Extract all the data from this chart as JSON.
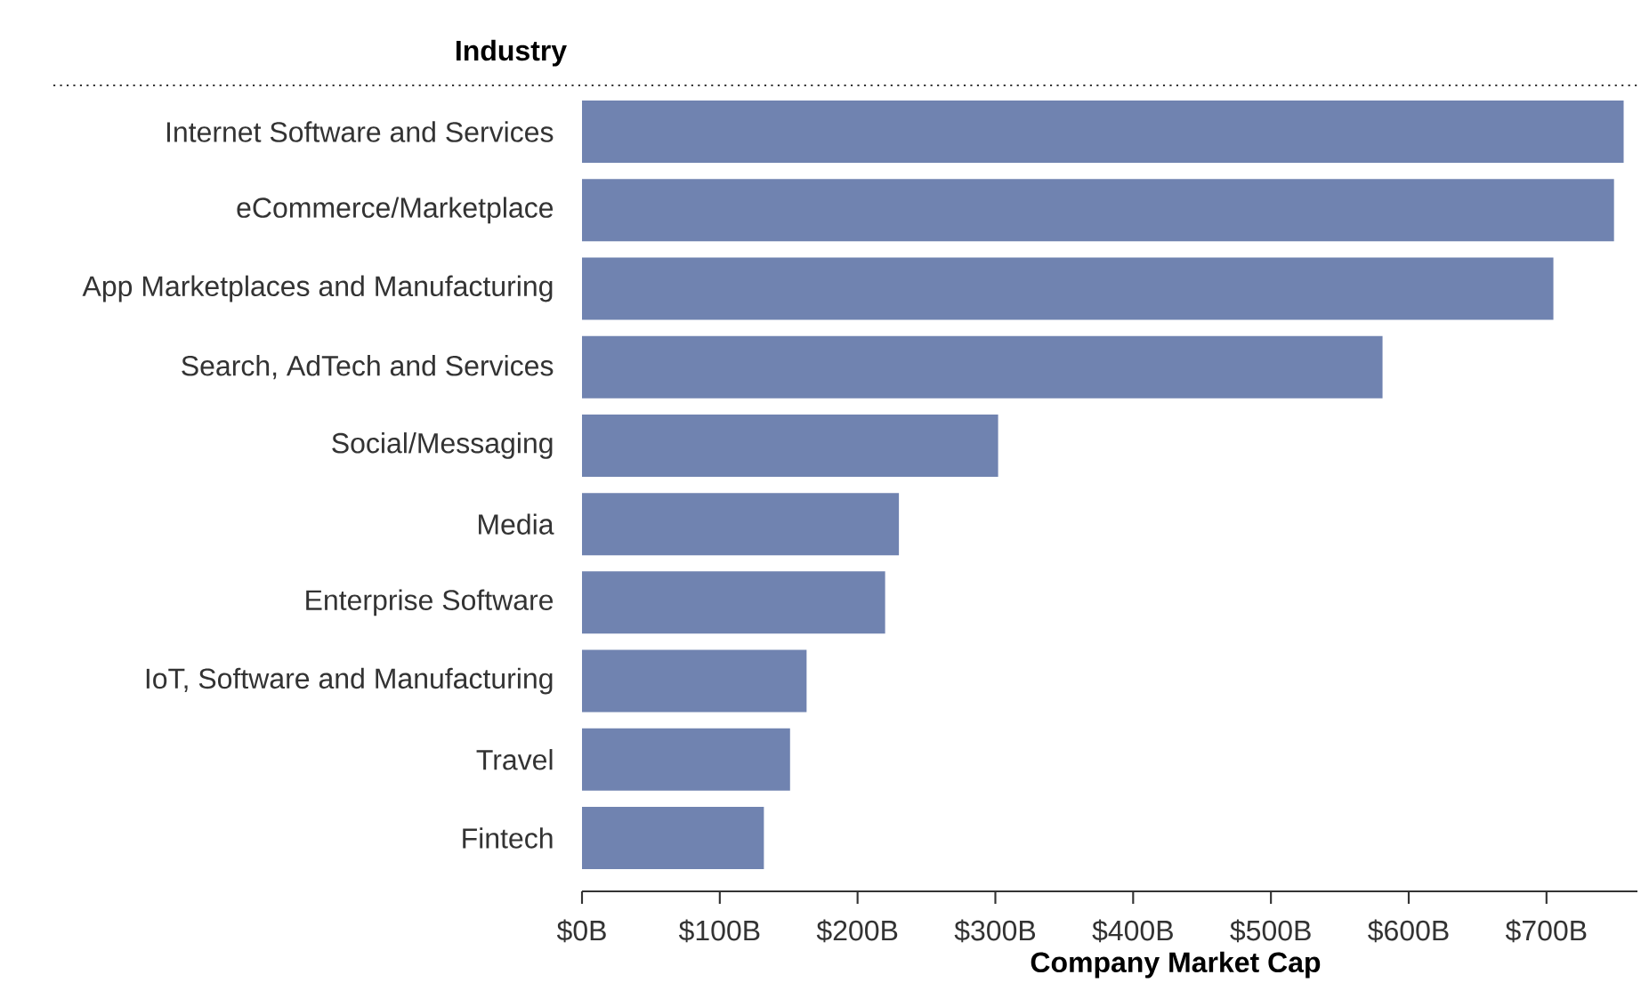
{
  "chart_data": {
    "type": "bar",
    "orientation": "horizontal",
    "ylabel": "Industry",
    "xlabel": "Company Market Cap",
    "categories": [
      "Internet Software and Services",
      "eCommerce/Marketplace",
      "App Marketplaces and Manufacturing",
      "Search, AdTech and Services",
      "Social/Messaging",
      "Media",
      "Enterprise Software",
      "IoT, Software and Manufacturing",
      "Travel",
      "Fintech"
    ],
    "values": [
      756,
      749,
      705,
      581,
      302,
      230,
      220,
      163,
      151,
      132
    ],
    "color": "#7083b0",
    "xlim": [
      0,
      766
    ],
    "xticks": [
      {
        "value": 0,
        "label": "$0B"
      },
      {
        "value": 100,
        "label": "$100B"
      },
      {
        "value": 200,
        "label": "$200B"
      },
      {
        "value": 300,
        "label": "$300B"
      },
      {
        "value": 400,
        "label": "$400B"
      },
      {
        "value": 500,
        "label": "$500B"
      },
      {
        "value": 600,
        "label": "$600B"
      },
      {
        "value": 700,
        "label": "$700B"
      }
    ],
    "grid": false
  }
}
